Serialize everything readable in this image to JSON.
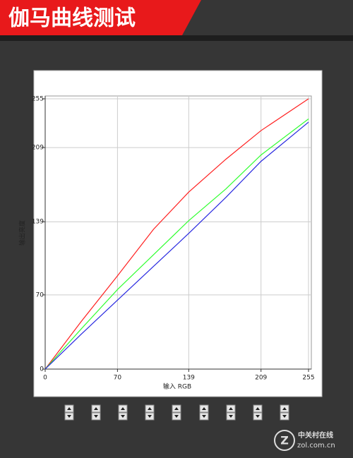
{
  "chart_data": {
    "type": "line",
    "title": "伽马曲线测试",
    "xlabel": "输入 RGB",
    "ylabel": "输出亮度",
    "x": [
      0,
      35,
      70,
      105,
      139,
      175,
      209,
      255
    ],
    "series": [
      {
        "name": "R",
        "color": "#ff2020",
        "values": [
          0,
          45,
          88,
          132,
          167,
          198,
          225,
          255
        ]
      },
      {
        "name": "G",
        "color": "#30ff30",
        "values": [
          0,
          38,
          75,
          108,
          140,
          170,
          202,
          236
        ]
      },
      {
        "name": "B",
        "color": "#2828e0",
        "values": [
          0,
          33,
          65,
          97,
          128,
          162,
          196,
          233
        ]
      }
    ],
    "xlim": [
      0,
      255
    ],
    "ylim": [
      0,
      255
    ],
    "xticks": [
      0,
      70,
      139,
      209,
      255
    ],
    "yticks": [
      0,
      70,
      139,
      209,
      255
    ],
    "grid": true
  },
  "watermark": {
    "name": "中关村在线",
    "url": "zol.com.cn"
  }
}
